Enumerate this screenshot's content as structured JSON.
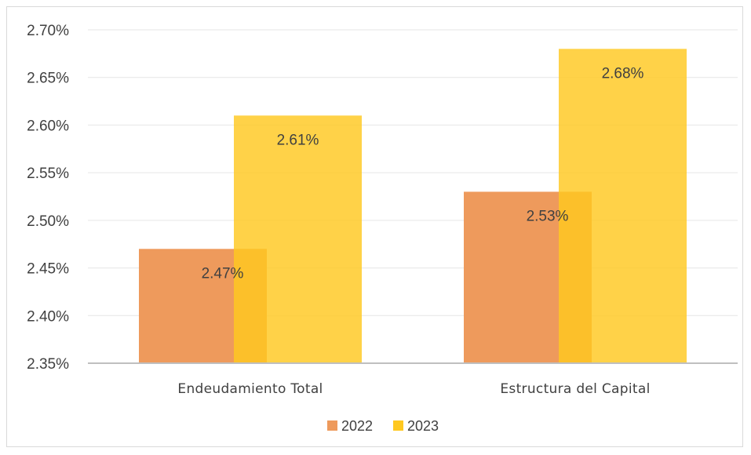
{
  "chart_data": {
    "type": "bar",
    "categories": [
      "Endeudamiento Total",
      "Estructura del Capital"
    ],
    "series": [
      {
        "name": "2022",
        "values": [
          0.0247,
          0.0253
        ],
        "labels": [
          "2.47%",
          "2.53%"
        ],
        "color": "#ee9a5c"
      },
      {
        "name": "2023",
        "values": [
          0.0261,
          0.0268
        ],
        "labels": [
          "2.61%",
          "2.68%"
        ],
        "color": "#ffc820"
      }
    ],
    "ylim": [
      0.0235,
      0.027
    ],
    "yticks": [
      0.0235,
      0.024,
      0.0245,
      0.025,
      0.0255,
      0.026,
      0.0265,
      0.027
    ],
    "ytick_labels": [
      "2.35%",
      "2.40%",
      "2.45%",
      "2.50%",
      "2.55%",
      "2.60%",
      "2.65%",
      "2.70%"
    ],
    "grid": true,
    "legend": "bottom-center",
    "title": "",
    "xlabel": "",
    "ylabel": ""
  }
}
